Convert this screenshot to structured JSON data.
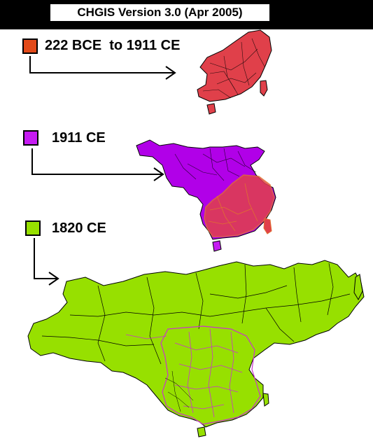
{
  "title": "CHGIS Version  3.0   (Apr  2005)",
  "legend": [
    {
      "label": "222 BCE  to 1911 CE",
      "color": "#e24a1a"
    },
    {
      "label": "1911 CE",
      "color": "#c61cf2"
    },
    {
      "label": "1820 CE",
      "color": "#97e000"
    }
  ],
  "colors": {
    "red_map": "#e0404a",
    "purple_map": "#b100e8",
    "orange_outline": "#e07030",
    "green_map": "#97e000",
    "magenta_boundary": "#cc33cc"
  }
}
